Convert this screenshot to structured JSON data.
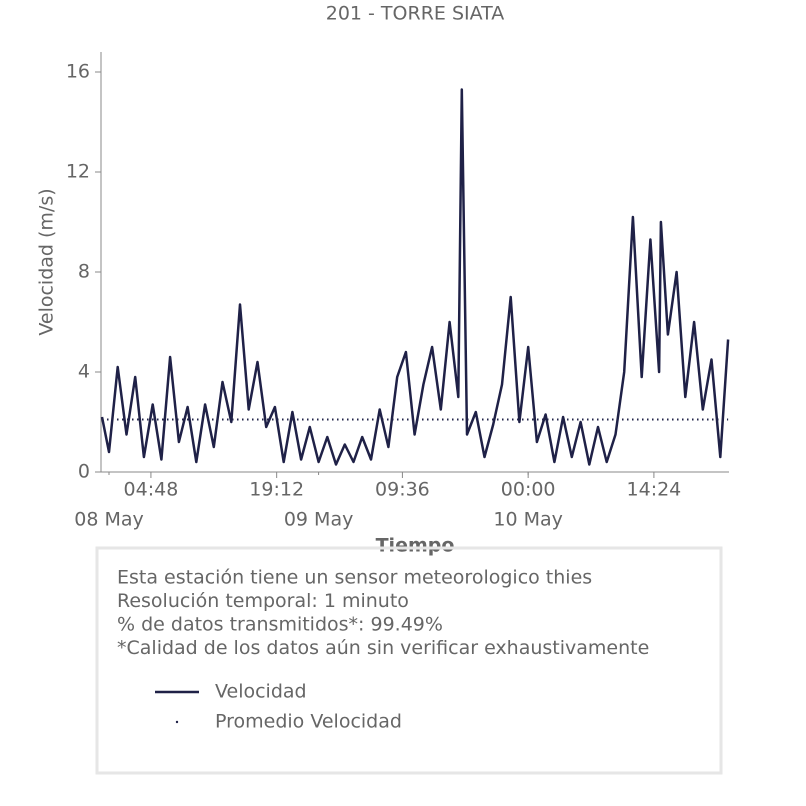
{
  "chart_data": {
    "type": "line",
    "title": "201 - TORRE SIATA",
    "xlabel": "Tiempo",
    "ylabel": "Velocidad (m/s)",
    "x": [
      "07 May 23:12",
      "08 May 00:00",
      "08 May 01:00",
      "08 May 02:00",
      "08 May 03:00",
      "08 May 04:00",
      "08 May 05:00",
      "08 May 06:00",
      "08 May 07:00",
      "08 May 08:00",
      "08 May 09:00",
      "08 May 10:00",
      "08 May 11:00",
      "08 May 12:00",
      "08 May 13:00",
      "08 May 14:00",
      "08 May 15:00",
      "08 May 16:00",
      "08 May 17:00",
      "08 May 18:00",
      "08 May 19:00",
      "08 May 20:00",
      "08 May 21:00",
      "08 May 22:00",
      "08 May 23:00",
      "09 May 00:00",
      "09 May 01:00",
      "09 May 02:00",
      "09 May 03:00",
      "09 May 04:00",
      "09 May 05:00",
      "09 May 06:00",
      "09 May 07:00",
      "09 May 08:00",
      "09 May 09:00",
      "09 May 10:00",
      "09 May 11:00",
      "09 May 12:00",
      "09 May 13:00",
      "09 May 14:00",
      "09 May 15:00",
      "09 May 16:00",
      "09 May 16:24",
      "09 May 17:00",
      "09 May 18:00",
      "09 May 19:00",
      "09 May 20:00",
      "09 May 21:00",
      "09 May 22:00",
      "09 May 23:00",
      "10 May 00:00",
      "10 May 01:00",
      "10 May 02:00",
      "10 May 03:00",
      "10 May 04:00",
      "10 May 05:00",
      "10 May 06:00",
      "10 May 07:00",
      "10 May 08:00",
      "10 May 09:00",
      "10 May 10:00",
      "10 May 11:00",
      "10 May 12:00",
      "10 May 13:00",
      "10 May 14:00",
      "10 May 15:00",
      "10 May 15:12",
      "10 May 16:00",
      "10 May 17:00",
      "10 May 18:00",
      "10 May 19:00",
      "10 May 20:00",
      "10 May 21:00",
      "10 May 22:00",
      "10 May 22:54"
    ],
    "series": [
      {
        "name": "Velocidad",
        "color": "#1f2147",
        "values": [
          2.2,
          0.8,
          4.2,
          1.5,
          3.8,
          0.6,
          2.7,
          0.5,
          4.6,
          1.2,
          2.6,
          0.4,
          2.7,
          1.0,
          3.6,
          2.0,
          6.7,
          2.5,
          4.4,
          1.8,
          2.6,
          0.4,
          2.4,
          0.5,
          1.8,
          0.4,
          1.4,
          0.3,
          1.1,
          0.4,
          1.4,
          0.5,
          2.5,
          1.0,
          3.8,
          4.8,
          1.5,
          3.5,
          5.0,
          2.5,
          6.0,
          3.0,
          15.3,
          1.5,
          2.4,
          0.6,
          1.9,
          3.5,
          7.0,
          2.0,
          5.0,
          1.2,
          2.3,
          0.4,
          2.2,
          0.6,
          2.0,
          0.3,
          1.8,
          0.4,
          1.5,
          4.0,
          10.2,
          3.8,
          9.3,
          4.0,
          10.0,
          5.5,
          8.0,
          3.0,
          6.0,
          2.5,
          4.5,
          0.6,
          5.3
        ]
      },
      {
        "name": "Promedio Velocidad",
        "color": "#1f2147",
        "value": 2.1
      }
    ],
    "xlim": [
      "07 May 23:05",
      "10 May 23:00"
    ],
    "ylim": [
      0,
      16.8
    ],
    "yticks": [
      0,
      4,
      8,
      12,
      16
    ],
    "xticks": [
      {
        "value": "08 May 04:48",
        "label": "04:48"
      },
      {
        "value": "08 May 19:12",
        "label": "19:12"
      },
      {
        "value": "09 May 09:36",
        "label": "09:36"
      },
      {
        "value": "10 May 00:00",
        "label": "00:00"
      },
      {
        "value": "10 May 14:24",
        "label": "14:24"
      }
    ],
    "date_ticks": [
      {
        "value": "08 May 00:00",
        "label": "08 May"
      },
      {
        "value": "09 May 00:00",
        "label": "09 May"
      },
      {
        "value": "10 May 00:00",
        "label": "10 May"
      }
    ],
    "annotations": [
      "Esta estación tiene un sensor meteorologico thies",
      "Resolución temporal: 1 minuto",
      "% de datos transmitidos*: 99.49%",
      "*Calidad de los datos aún sin verificar exhaustivamente"
    ]
  }
}
